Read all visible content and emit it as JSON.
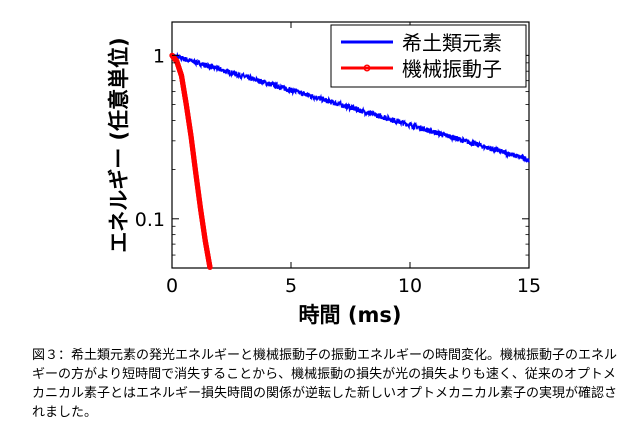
{
  "chart_data": {
    "type": "line",
    "xlabel": "時間 (ms)",
    "ylabel": "エネルギー (任意単位)",
    "xlim": [
      0,
      15
    ],
    "ylim": [
      0.05,
      1.6
    ],
    "yscale": "log",
    "xticks": [
      0,
      5,
      10,
      15
    ],
    "xtick_labels": [
      "0",
      "5",
      "10",
      "15"
    ],
    "yticks": [
      0.1,
      1
    ],
    "ytick_labels": [
      "0.1",
      "1"
    ],
    "grid": false,
    "legend_position": "top-right",
    "series": [
      {
        "name": "希土類元素",
        "color": "#0000ff",
        "x": [
          0,
          15
        ],
        "y": [
          1.0,
          0.23
        ],
        "noisy": true
      },
      {
        "name": "機械振動子",
        "color": "#ff0000",
        "marker": "circle",
        "x": [
          0,
          0.2,
          0.4,
          0.6,
          0.8,
          1.0,
          1.2,
          1.4,
          1.6
        ],
        "y": [
          1.0,
          0.92,
          0.75,
          0.5,
          0.32,
          0.19,
          0.115,
          0.073,
          0.05
        ]
      }
    ]
  },
  "caption": "図３：希土類元素の発光エネルギーと機械振動子の振動エネルギーの時間変化。機械振動子のエネルギーの方がより短時間で消失することから、機械振動の損失が光の損失よりも速く、従来のオプトメカニカル素子とはエネルギー損失時間の関係が逆転した新しいオプトメカニカル素子の実現が確認されました。"
}
